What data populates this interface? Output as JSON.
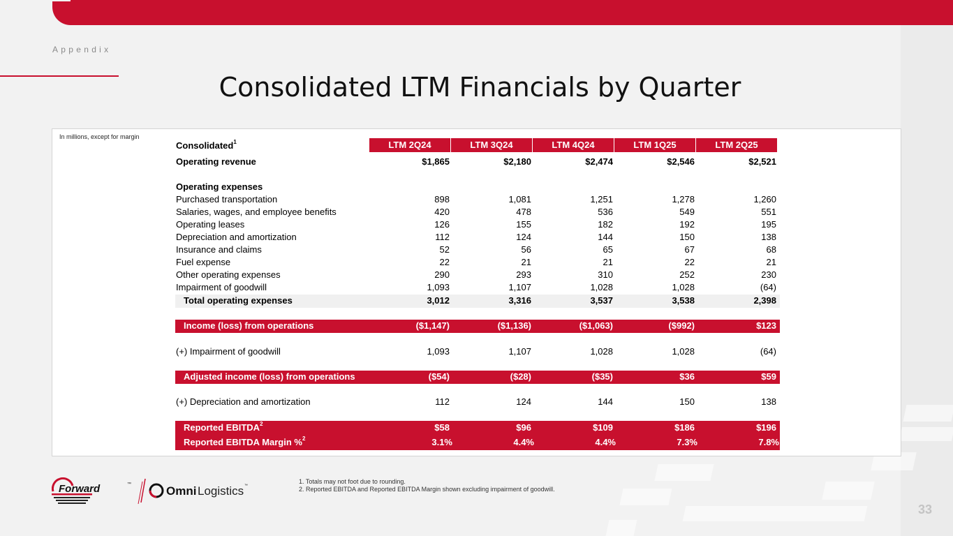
{
  "section": "Appendix",
  "title": "Consolidated LTM Financials by Quarter",
  "units_note": "In millions, except for margin",
  "table": {
    "header_label": "Consolidated",
    "header_sup": "1",
    "columns": [
      "LTM 2Q24",
      "LTM 3Q24",
      "LTM 4Q24",
      "LTM 1Q25",
      "LTM 2Q25"
    ],
    "operating_revenue": {
      "label": "Operating revenue",
      "values": [
        "$1,865",
        "$2,180",
        "$2,474",
        "$2,546",
        "$2,521"
      ]
    },
    "operating_expenses_heading": "Operating expenses",
    "expenses": [
      {
        "label": "Purchased transportation",
        "values": [
          "898",
          "1,081",
          "1,251",
          "1,278",
          "1,260"
        ]
      },
      {
        "label": "Salaries, wages, and employee benefits",
        "values": [
          "420",
          "478",
          "536",
          "549",
          "551"
        ]
      },
      {
        "label": "Operating leases",
        "values": [
          "126",
          "155",
          "182",
          "192",
          "195"
        ]
      },
      {
        "label": "Depreciation and amortization",
        "values": [
          "112",
          "124",
          "144",
          "150",
          "138"
        ]
      },
      {
        "label": "Insurance and claims",
        "values": [
          "52",
          "56",
          "65",
          "67",
          "68"
        ]
      },
      {
        "label": "Fuel expense",
        "values": [
          "22",
          "21",
          "21",
          "22",
          "21"
        ]
      },
      {
        "label": "Other operating expenses",
        "values": [
          "290",
          "293",
          "310",
          "252",
          "230"
        ]
      },
      {
        "label": "Impairment of goodwill",
        "values": [
          "1,093",
          "1,107",
          "1,028",
          "1,028",
          "(64)"
        ]
      }
    ],
    "total_operating_expenses": {
      "label": "Total operating expenses",
      "values": [
        "3,012",
        "3,316",
        "3,537",
        "3,538",
        "2,398"
      ]
    },
    "income_from_operations": {
      "label": "Income (loss) from operations",
      "values": [
        "($1,147)",
        "($1,136)",
        "($1,063)",
        "($992)",
        "$123"
      ]
    },
    "plus_impairment": {
      "label": "(+) Impairment of goodwill",
      "values": [
        "1,093",
        "1,107",
        "1,028",
        "1,028",
        "(64)"
      ]
    },
    "adjusted_income": {
      "label": "Adjusted income (loss) from operations",
      "values": [
        "($54)",
        "($28)",
        "($35)",
        "$36",
        "$59"
      ]
    },
    "plus_depreciation": {
      "label": "(+) Depreciation and amortization",
      "values": [
        "112",
        "124",
        "144",
        "150",
        "138"
      ]
    },
    "reported_ebitda": {
      "label": "Reported EBITDA",
      "sup": "2",
      "values": [
        "$58",
        "$96",
        "$109",
        "$186",
        "$196"
      ]
    },
    "reported_ebitda_margin": {
      "label": "Reported EBITDA Margin %",
      "sup": "2",
      "values": [
        "3.1%",
        "4.4%",
        "4.4%",
        "7.3%",
        "7.8%"
      ]
    }
  },
  "footnotes": [
    "1.  Totals may not foot due to rounding.",
    "2.  Reported EBITDA and Reported EBITDA Margin shown excluding impairment of goodwill."
  ],
  "logos": {
    "forward": "Forward",
    "forward_tm": "™",
    "omni_bold": "Omni",
    "omni_light": "Logistics",
    "omni_tm": "™"
  },
  "page_number": "33",
  "colors": {
    "brand_red": "#c8102e",
    "background": "#f2f2f2"
  }
}
